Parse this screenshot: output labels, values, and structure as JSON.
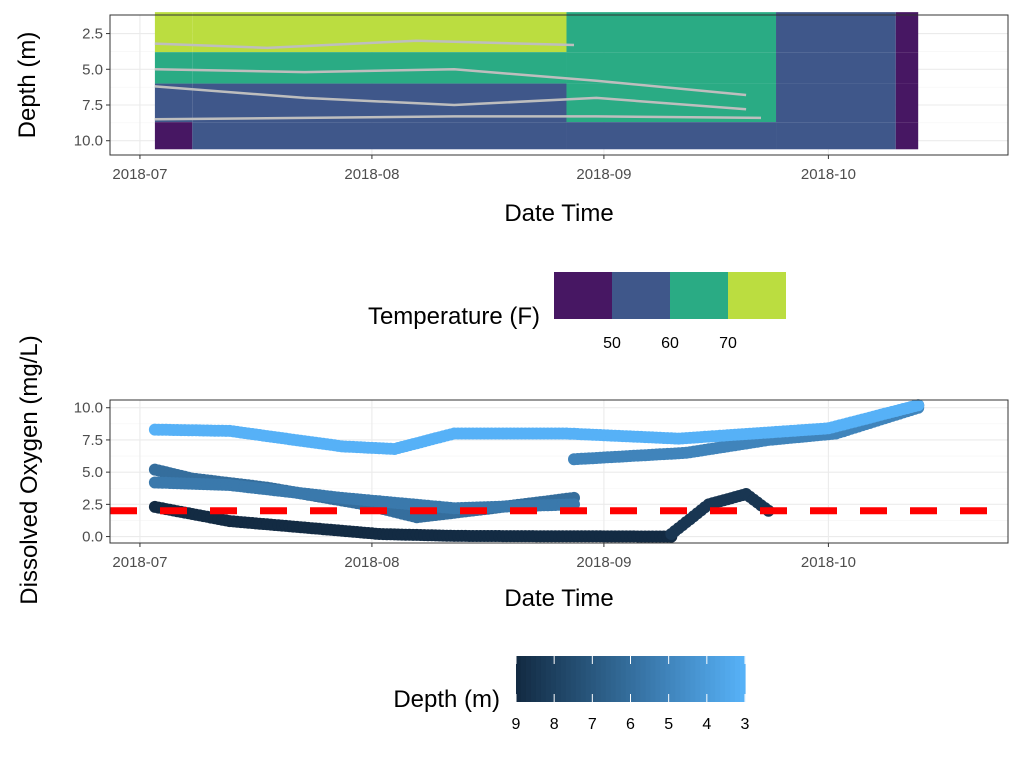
{
  "chart_data": [
    {
      "type": "heatmap",
      "xlabel": "Date Time",
      "ylabel": "Depth (m)",
      "x_ticks": [
        "2018-07",
        "2018-08",
        "2018-09",
        "2018-10"
      ],
      "x_range": [
        "2018-06-27",
        "2018-10-25"
      ],
      "y_ticks": [
        2.5,
        5.0,
        7.5,
        10.0
      ],
      "y_range": [
        11.0,
        1.2
      ],
      "y_reversed": true,
      "grid": true,
      "color_scale": {
        "title": "Temperature (F)",
        "labels": [
          "50",
          "60",
          "70"
        ],
        "bins": [
          {
            "range": [
              45,
              50
            ],
            "color": "#471763"
          },
          {
            "range": [
              50,
              60
            ],
            "color": "#3f578a"
          },
          {
            "range": [
              60,
              70
            ],
            "color": "#2aab84"
          },
          {
            "range": [
              70,
              75
            ],
            "color": "#bbdd40"
          }
        ]
      },
      "depth_layers": [
        {
          "from": 1.0,
          "to": 3.8
        },
        {
          "from": 3.8,
          "to": 6.0
        },
        {
          "from": 6.0,
          "to": 8.7
        },
        {
          "from": 8.7,
          "to": 10.6
        }
      ],
      "periods": [
        {
          "start": "2018-07-03",
          "end": "2018-07-08",
          "temps": [
            73,
            62,
            55,
            48
          ]
        },
        {
          "start": "2018-07-08",
          "end": "2018-08-27",
          "temps": [
            73,
            62,
            55,
            55
          ]
        },
        {
          "start": "2018-08-27",
          "end": "2018-09-24",
          "temps": [
            65,
            65,
            65,
            55
          ]
        },
        {
          "start": "2018-09-24",
          "end": "2018-10-10",
          "temps": [
            55,
            55,
            55,
            55
          ]
        },
        {
          "start": "2018-10-10",
          "end": "2018-10-13",
          "temps": [
            48,
            48,
            48,
            48
          ]
        }
      ],
      "contour_lines": [
        {
          "start": "2018-07-03",
          "end": "2018-08-28",
          "points": [
            [
              0,
              3.2
            ],
            [
              15,
              3.5
            ],
            [
              35,
              3.0
            ],
            [
              56,
              3.3
            ]
          ]
        },
        {
          "start": "2018-07-03",
          "end": "2018-09-20",
          "points": [
            [
              0,
              5.0
            ],
            [
              20,
              5.2
            ],
            [
              40,
              5.0
            ],
            [
              59,
              5.8
            ],
            [
              79,
              6.8
            ]
          ]
        },
        {
          "start": "2018-07-03",
          "end": "2018-09-20",
          "points": [
            [
              0,
              6.2
            ],
            [
              20,
              7.0
            ],
            [
              40,
              7.5
            ],
            [
              59,
              7.0
            ],
            [
              79,
              7.8
            ]
          ]
        },
        {
          "start": "2018-07-03",
          "end": "2018-09-22",
          "points": [
            [
              0,
              8.5
            ],
            [
              20,
              8.4
            ],
            [
              40,
              8.3
            ],
            [
              59,
              8.3
            ],
            [
              81,
              8.4
            ]
          ]
        }
      ]
    },
    {
      "type": "scatter",
      "xlabel": "Date Time",
      "ylabel": "Dissolved Oxygen (mg/L)",
      "x_ticks": [
        "2018-07",
        "2018-08",
        "2018-09",
        "2018-10"
      ],
      "x_range": [
        "2018-06-27",
        "2018-10-25"
      ],
      "y_ticks": [
        0.0,
        2.5,
        5.0,
        7.5,
        10.0
      ],
      "y_range": [
        -0.5,
        10.6
      ],
      "grid": true,
      "reference_line": {
        "y": 2.0,
        "color": "#ff0000",
        "style": "dashed"
      },
      "color_scale": {
        "title": "Depth (m)",
        "labels": [
          "9",
          "8",
          "7",
          "6",
          "5",
          "4",
          "3"
        ],
        "low_color": "#132b43",
        "high_color": "#56b1f7"
      },
      "series": [
        {
          "depth": 9,
          "start": "2018-07-03",
          "end": "2018-09-10",
          "values": [
            [
              0,
              2.3
            ],
            [
              10,
              1.2
            ],
            [
              20,
              0.7
            ],
            [
              30,
              0.2
            ],
            [
              40,
              0.05
            ],
            [
              69,
              0.0
            ]
          ]
        },
        {
          "depth": 8.5,
          "start": "2018-09-10",
          "end": "2018-09-23",
          "values": [
            [
              0,
              0.2
            ],
            [
              5,
              2.5
            ],
            [
              10,
              3.3
            ],
            [
              13,
              2.0
            ]
          ]
        },
        {
          "depth": 8,
          "start": "2018-09-24",
          "end": "2018-10-13",
          "values": [
            [
              0,
              7.9
            ],
            [
              10,
              8.6
            ],
            [
              19,
              10.2
            ]
          ]
        },
        {
          "depth": 6,
          "start": "2018-07-03",
          "end": "2018-08-28",
          "values": [
            [
              0,
              5.2
            ],
            [
              5,
              4.5
            ],
            [
              15,
              3.8
            ],
            [
              28,
              2.5
            ],
            [
              35,
              1.5
            ],
            [
              45,
              2.2
            ],
            [
              56,
              3.0
            ]
          ]
        },
        {
          "depth": 5.5,
          "start": "2018-07-03",
          "end": "2018-08-28",
          "values": [
            [
              0,
              4.2
            ],
            [
              10,
              4.0
            ],
            [
              25,
              3.0
            ],
            [
              40,
              2.2
            ],
            [
              56,
              2.5
            ]
          ]
        },
        {
          "depth": 5,
          "start": "2018-08-28",
          "end": "2018-10-13",
          "values": [
            [
              0,
              6.0
            ],
            [
              15,
              6.5
            ],
            [
              26,
              7.5
            ],
            [
              35,
              8.0
            ],
            [
              46,
              10.0
            ]
          ]
        },
        {
          "depth": 3,
          "start": "2018-07-03",
          "end": "2018-10-13",
          "values": [
            [
              0,
              8.3
            ],
            [
              10,
              8.2
            ],
            [
              25,
              7.0
            ],
            [
              32,
              6.8
            ],
            [
              40,
              8.0
            ],
            [
              55,
              8.0
            ],
            [
              70,
              7.6
            ],
            [
              90,
              8.4
            ],
            [
              102,
              10.2
            ]
          ]
        }
      ]
    }
  ]
}
